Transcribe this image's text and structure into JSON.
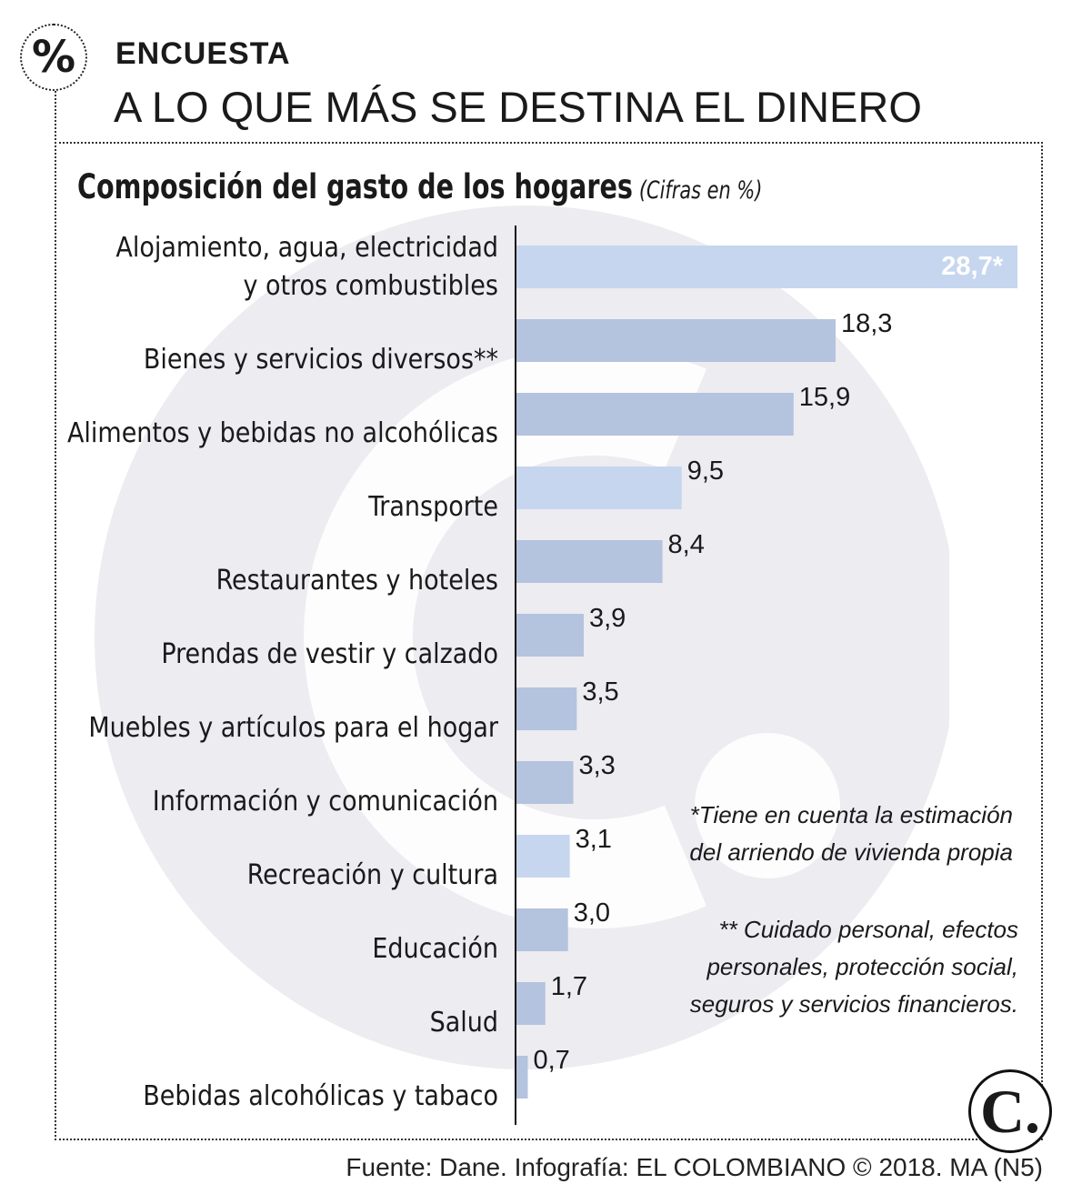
{
  "header": {
    "badge_symbol": "%",
    "kicker": "ENCUESTA",
    "headline": "A LO QUE MÁS SE DESTINA EL DINERO"
  },
  "chart_data": {
    "type": "bar",
    "orientation": "horizontal",
    "title": "Composición del gasto de los hogares",
    "subtitle": "(Cifras en %)",
    "categories": [
      "Alojamiento, agua, electricidad y otros combustibles",
      "Bienes y servicios diversos**",
      "Alimentos y bebidas no alcohólicas",
      "Transporte",
      "Restaurantes y hoteles",
      "Prendas de vestir y calzado",
      "Muebles y artículos para el hogar",
      "Información y comunicación",
      "Recreación y cultura",
      "Educación",
      "Salud",
      "Bebidas alcohólicas y tabaco"
    ],
    "category_lines": [
      [
        "Alojamiento, agua, electricidad",
        "y otros combustibles"
      ],
      [
        "Bienes y servicios diversos**"
      ],
      [
        "Alimentos y bebidas no alcohólicas"
      ],
      [
        "Transporte"
      ],
      [
        "Restaurantes y hoteles"
      ],
      [
        "Prendas de vestir y calzado"
      ],
      [
        "Muebles y artículos para el hogar"
      ],
      [
        "Información y comunicación"
      ],
      [
        "Recreación y cultura"
      ],
      [
        "Educación"
      ],
      [
        "Salud"
      ],
      [
        "Bebidas alcohólicas y tabaco"
      ]
    ],
    "values": [
      28.7,
      18.3,
      15.9,
      9.5,
      8.4,
      3.9,
      3.5,
      3.3,
      3.1,
      3.0,
      1.7,
      0.7
    ],
    "data_labels": [
      "28,7*",
      "18,3",
      "15,9",
      "9,5",
      "8,4",
      "3,9",
      "3,5",
      "3,3",
      "3,1",
      "3,0",
      "1,7",
      "0,7"
    ],
    "xlim": [
      0,
      28.7
    ],
    "unit": "%",
    "colors": {
      "bar": "#b4c3de",
      "bar_highlight": "#c6d6ee",
      "axis": "#111111",
      "watermark": "#ececf1",
      "label_on_bar": "#ffffff"
    }
  },
  "notes": {
    "note1": "*Tiene en cuenta la estimación del arriendo de vivienda propia",
    "note2": "** Cuidado personal, efectos personales, protección social, seguros y servicios financieros."
  },
  "logo_text": "C.",
  "source": "Fuente: Dane. Infografía: EL COLOMBIANO © 2018. MA (N5)"
}
